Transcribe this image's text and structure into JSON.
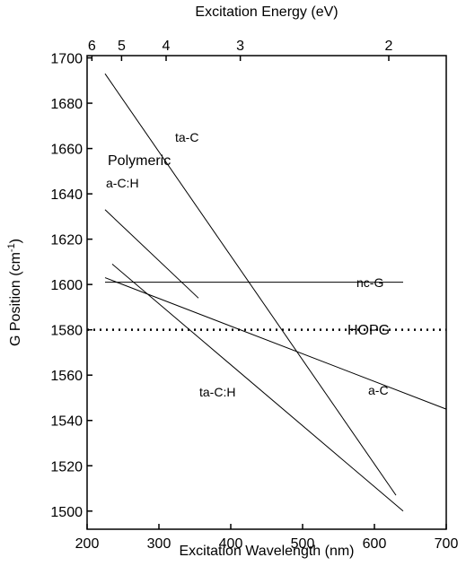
{
  "chart_data": {
    "type": "line",
    "xlabel": "Excitation Wavelength (nm)",
    "x2label": "Excitation Energy (eV)",
    "ylabel": "G Position (cm",
    "ylabel_sup": "-1",
    "ylabel_end": ")",
    "xlim": [
      200,
      700
    ],
    "xticks": [
      200,
      300,
      400,
      500,
      600,
      700
    ],
    "ylim": [
      1492,
      1701
    ],
    "yticks": [
      1500,
      1520,
      1540,
      1560,
      1580,
      1600,
      1620,
      1640,
      1660,
      1680,
      1700
    ],
    "x2ticks": [
      {
        "value": 206.7,
        "label": "6"
      },
      {
        "value": 248,
        "label": "5"
      },
      {
        "value": 310,
        "label": "4"
      },
      {
        "value": 413.3,
        "label": "3"
      },
      {
        "value": 620,
        "label": "2"
      }
    ],
    "series": [
      {
        "color": "#000000",
        "style": "solid",
        "x": [
          225,
          630
        ],
        "values": [
          1693,
          1507
        ]
      },
      {
        "color": "#000000",
        "style": "solid",
        "x": [
          235,
          640
        ],
        "values": [
          1609,
          1500
        ]
      },
      {
        "color": "#000000",
        "style": "solid",
        "x": [
          225,
          700
        ],
        "values": [
          1603,
          1545
        ]
      },
      {
        "color": "#000000",
        "style": "solid",
        "x": [
          225,
          640
        ],
        "values": [
          1601,
          1601
        ]
      },
      {
        "color": "#000000",
        "style": "solid",
        "x": [
          225,
          355
        ],
        "values": [
          1633,
          1594
        ]
      },
      {
        "color": "#000000",
        "style": "dotted",
        "x": [
          200,
          700
        ],
        "values": [
          1580,
          1580
        ]
      }
    ],
    "annotations": [
      "ta-C",
      "Polymeric",
      "a-C:H",
      "nc-G",
      "HOPG",
      "ta-C:H",
      "a-C"
    ]
  }
}
